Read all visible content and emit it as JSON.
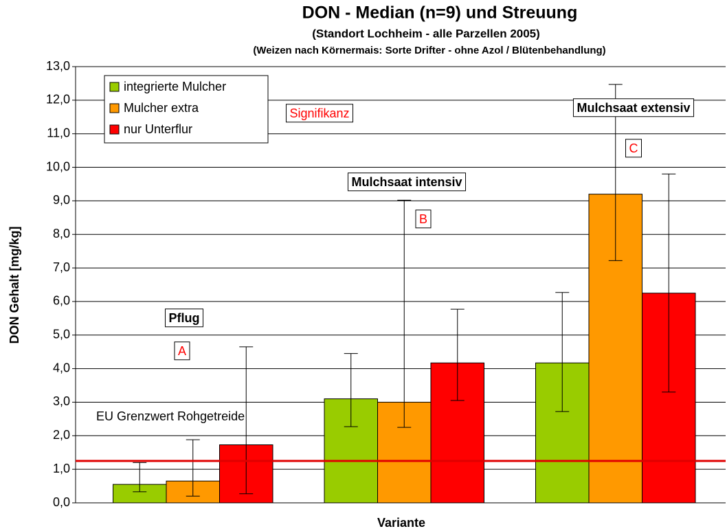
{
  "chart_data": {
    "type": "bar",
    "title": "DON  - Median (n=9) und Streuung",
    "subtitle": "(Standort Lochheim - alle Parzellen 2005)",
    "subtitle2": "(Weizen nach Körnermais: Sorte Drifter - ohne Azol / Blütenbehandlung)",
    "xlabel": "Variante",
    "ylabel": "DON Gehalt [mg/kg]",
    "categories": [
      null,
      null,
      null
    ],
    "series": [
      {
        "name": "integrierte Mulcher",
        "color": "#99cc00",
        "values": [
          0.55,
          3.1,
          4.17
        ],
        "low": [
          0.33,
          2.27,
          2.72
        ],
        "high": [
          1.2,
          4.45,
          6.27
        ]
      },
      {
        "name": "Mulcher extra",
        "color": "#ff9900",
        "values": [
          0.65,
          3.0,
          9.2
        ],
        "low": [
          0.2,
          2.25,
          7.22
        ],
        "high": [
          1.88,
          9.02,
          12.47
        ]
      },
      {
        "name": "nur Unterflur",
        "color": "#ff0000",
        "values": [
          1.73,
          4.17,
          6.25
        ],
        "low": [
          0.27,
          3.05,
          3.3
        ],
        "high": [
          4.65,
          5.77,
          9.8
        ]
      }
    ],
    "ylim": [
      0,
      13
    ],
    "yticks": [
      {
        "value": 0,
        "label": "0,0"
      },
      {
        "value": 1,
        "label": "1,0"
      },
      {
        "value": 2,
        "label": "2,0"
      },
      {
        "value": 3,
        "label": "3,0"
      },
      {
        "value": 4,
        "label": "4,0"
      },
      {
        "value": 5,
        "label": "5,0"
      },
      {
        "value": 6,
        "label": "6,0"
      },
      {
        "value": 7,
        "label": "7,0"
      },
      {
        "value": 8,
        "label": "8,0"
      },
      {
        "value": 9,
        "label": "9,0"
      },
      {
        "value": 10,
        "label": "10,0"
      },
      {
        "value": 11,
        "label": "11,0"
      },
      {
        "value": 12,
        "label": "12,0"
      },
      {
        "value": 13,
        "label": "13,0"
      }
    ],
    "grid": true,
    "legend": "upper left",
    "reference_line": {
      "value": 1.25,
      "label": "EU Grenzwert Rohgetreide",
      "color": "#e00000"
    },
    "annotations": [
      "Pflug",
      "A",
      "Mulchsaat intensiv",
      "B",
      "Mulchsaat extensiv",
      "C",
      "Signifikanz"
    ]
  }
}
